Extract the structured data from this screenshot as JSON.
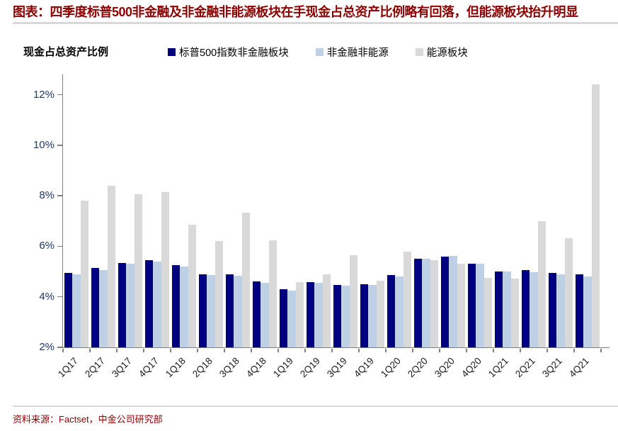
{
  "title": "图表：四季度标普500非金融及非金融非能源板块在手现金占总资产比例略有回落，但能源板块抬升明显",
  "axis_title": "现金占总资产比例",
  "footer": {
    "source": "资料来源：Factset，中金公司研究部"
  },
  "colors": {
    "title": "#8b0000",
    "rule": "#d9d9d9",
    "axis": "#808080",
    "ytick_label": "#1f3864",
    "xtick_label": "#1a1a1a",
    "footer": "#8b0000"
  },
  "chart_data": {
    "type": "bar",
    "title": "现金占总资产比例",
    "categories": [
      "1Q17",
      "2Q17",
      "3Q17",
      "4Q17",
      "1Q18",
      "2Q18",
      "3Q18",
      "4Q18",
      "1Q19",
      "2Q19",
      "3Q19",
      "4Q19",
      "1Q20",
      "2Q20",
      "3Q20",
      "4Q20",
      "1Q21",
      "2Q21",
      "3Q21",
      "4Q21"
    ],
    "series": [
      {
        "name": "标普500指数非金融板块",
        "color": "#000080",
        "values": [
          4.95,
          5.15,
          5.35,
          5.45,
          5.25,
          4.9,
          4.88,
          4.6,
          4.3,
          4.57,
          4.47,
          4.5,
          4.85,
          5.5,
          5.6,
          5.3,
          5.0,
          5.05,
          4.95,
          4.88
        ]
      },
      {
        "name": "非金融非能源",
        "color": "#bdd0e6",
        "values": [
          4.9,
          5.05,
          5.3,
          5.4,
          5.2,
          4.87,
          4.82,
          4.55,
          4.25,
          4.55,
          4.44,
          4.48,
          4.8,
          5.52,
          5.62,
          5.32,
          5.0,
          4.98,
          4.88,
          4.8
        ]
      },
      {
        "name": "能源板块",
        "color": "#d9d9d9",
        "values": [
          7.8,
          8.4,
          8.05,
          8.15,
          6.85,
          6.2,
          7.32,
          6.23,
          4.57,
          4.9,
          5.65,
          4.64,
          5.8,
          5.45,
          5.3,
          4.75,
          4.73,
          7.0,
          6.32,
          12.4
        ]
      }
    ],
    "xlabel": "",
    "ylabel": "现金占总资产比例",
    "yticks": [
      2,
      4,
      6,
      8,
      10,
      12
    ],
    "ytick_suffix": "%",
    "ylim": [
      2,
      12.8
    ],
    "grid": false,
    "legend_position": "top"
  }
}
